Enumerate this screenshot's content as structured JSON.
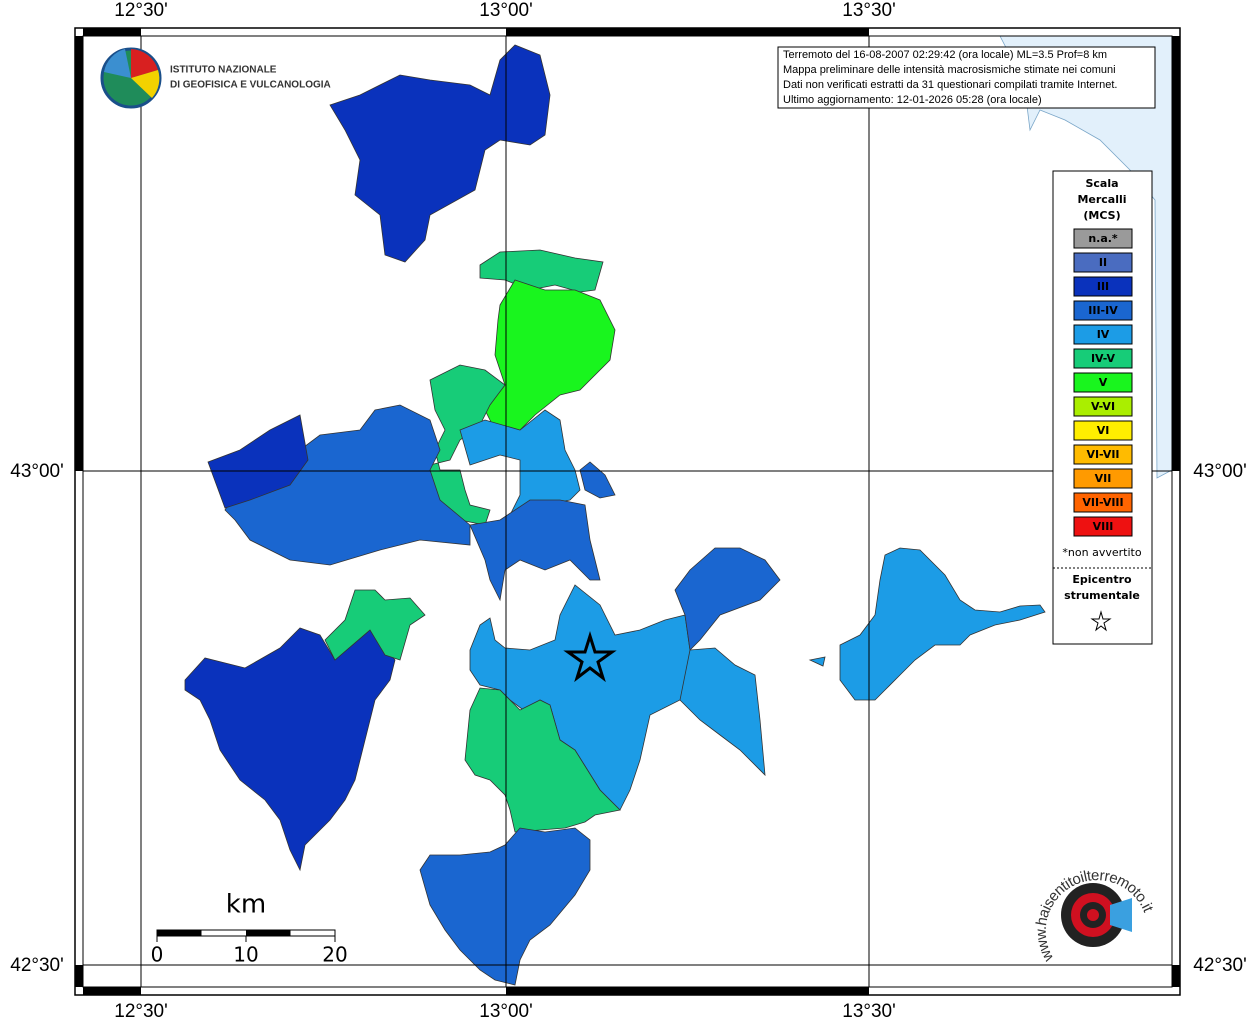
{
  "header": {
    "logo_lines": [
      "ISTITUTO NAZIONALE",
      "DI GEOFISICA E VULCANOLOGIA"
    ],
    "info_lines": [
      "Terremoto del 16-08-2007 02:29:42 (ora locale) ML=3.5 Prof=8 km",
      "Mappa preliminare delle intensità macrosismiche stimate nei comuni",
      "Dati non verificati estratti da 31 questionari compilati tramite Internet.",
      "Ultimo aggiornamento: 12-01-2026 05:28 (ora locale)"
    ]
  },
  "map": {
    "lon_labels": [
      "12°30'",
      "13°00'",
      "13°30'"
    ],
    "lat_labels": [
      "43°00'",
      "42°30'"
    ]
  },
  "legend": {
    "title_lines": [
      "Scala",
      "Mercalli",
      "(MCS)"
    ],
    "classes": [
      {
        "label": "n.a.*",
        "color": "#9a9a9a"
      },
      {
        "label": "II",
        "color": "#4a6cc0"
      },
      {
        "label": "III",
        "color": "#0a32bc"
      },
      {
        "label": "III-IV",
        "color": "#1a66d0"
      },
      {
        "label": "IV",
        "color": "#1c9ce6"
      },
      {
        "label": "IV-V",
        "color": "#17cc78"
      },
      {
        "label": "V",
        "color": "#19f51e"
      },
      {
        "label": "V-VI",
        "color": "#aaee00"
      },
      {
        "label": "VI",
        "color": "#ffee00"
      },
      {
        "label": "VI-VII",
        "color": "#ffbb00"
      },
      {
        "label": "VII",
        "color": "#ff9a00"
      },
      {
        "label": "VII-VIII",
        "color": "#ff6400"
      },
      {
        "label": "VIII",
        "color": "#ee1111"
      }
    ],
    "note": "*non avvertito",
    "epicenter_lines": [
      "Epicentro",
      "strumentale"
    ]
  },
  "scale_bar": {
    "unit": "km",
    "ticks": [
      0,
      10,
      20
    ]
  },
  "watermark": "www.haisentitoilterremoto.it"
}
